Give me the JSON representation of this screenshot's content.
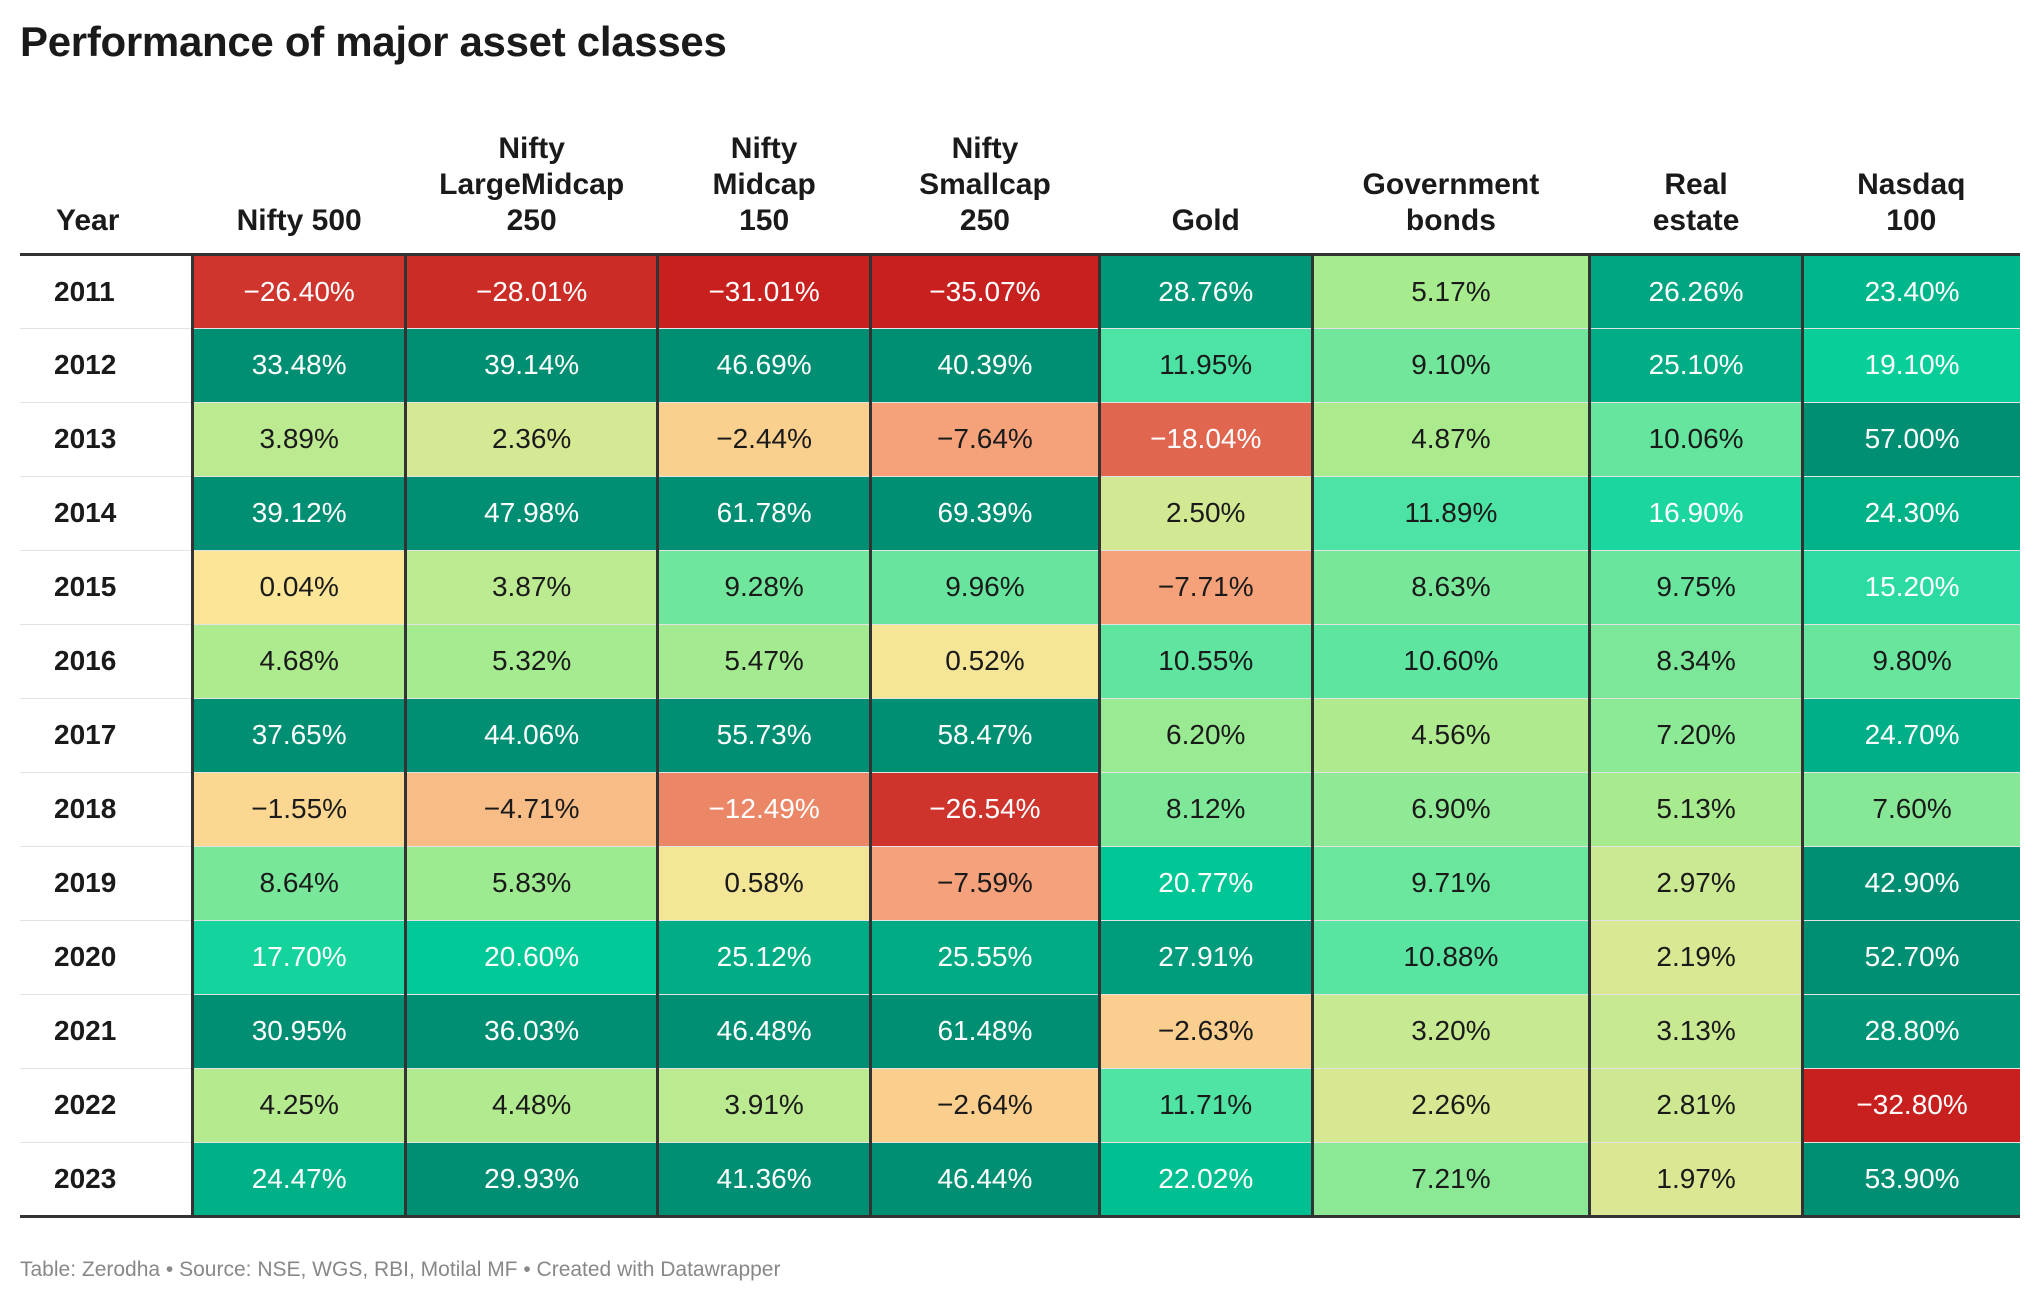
{
  "title": "Performance of major asset classes",
  "footer": "Table: Zerodha • Source: NSE, WGS, RBI, Motilal MF • Created with Datawrapper",
  "colors": {
    "deep_red": "#c8201e",
    "salmon": "#f5a37c",
    "pale_yellow": "#fde597",
    "light_green": "#a9eb8e",
    "mint": "#3ee2a8",
    "teal": "#008f73"
  },
  "chart_data": {
    "type": "table",
    "title": "Performance of major asset classes",
    "columns": [
      "Year",
      "Nifty 500",
      "Nifty LargeMidcap 250",
      "Nifty Midcap 150",
      "Nifty Smallcap 250",
      "Gold",
      "Government bonds",
      "Real estate",
      "Nasdaq 100"
    ],
    "rows": [
      {
        "year": "2011",
        "display": [
          "−26.40%",
          "−28.01%",
          "−31.01%",
          "−35.07%",
          "28.76%",
          "5.17%",
          "26.26%",
          "23.40%"
        ],
        "values": [
          -26.4,
          -28.01,
          -31.01,
          -35.07,
          28.76,
          5.17,
          26.26,
          23.4
        ]
      },
      {
        "year": "2012",
        "display": [
          "33.48%",
          "39.14%",
          "46.69%",
          "40.39%",
          "11.95%",
          "9.10%",
          "25.10%",
          "19.10%"
        ],
        "values": [
          33.48,
          39.14,
          46.69,
          40.39,
          11.95,
          9.1,
          25.1,
          19.1
        ]
      },
      {
        "year": "2013",
        "display": [
          "3.89%",
          "2.36%",
          "−2.44%",
          "−7.64%",
          "−18.04%",
          "4.87%",
          "10.06%",
          "57.00%"
        ],
        "values": [
          3.89,
          2.36,
          -2.44,
          -7.64,
          -18.04,
          4.87,
          10.06,
          57.0
        ]
      },
      {
        "year": "2014",
        "display": [
          "39.12%",
          "47.98%",
          "61.78%",
          "69.39%",
          "2.50%",
          "11.89%",
          "16.90%",
          "24.30%"
        ],
        "values": [
          39.12,
          47.98,
          61.78,
          69.39,
          2.5,
          11.89,
          16.9,
          24.3
        ]
      },
      {
        "year": "2015",
        "display": [
          "0.04%",
          "3.87%",
          "9.28%",
          "9.96%",
          "−7.71%",
          "8.63%",
          "9.75%",
          "15.20%"
        ],
        "values": [
          0.04,
          3.87,
          9.28,
          9.96,
          -7.71,
          8.63,
          9.75,
          15.2
        ]
      },
      {
        "year": "2016",
        "display": [
          "4.68%",
          "5.32%",
          "5.47%",
          "0.52%",
          "10.55%",
          "10.60%",
          "8.34%",
          "9.80%"
        ],
        "values": [
          4.68,
          5.32,
          5.47,
          0.52,
          10.55,
          10.6,
          8.34,
          9.8
        ]
      },
      {
        "year": "2017",
        "display": [
          "37.65%",
          "44.06%",
          "55.73%",
          "58.47%",
          "6.20%",
          "4.56%",
          "7.20%",
          "24.70%"
        ],
        "values": [
          37.65,
          44.06,
          55.73,
          58.47,
          6.2,
          4.56,
          7.2,
          24.7
        ]
      },
      {
        "year": "2018",
        "display": [
          "−1.55%",
          "−4.71%",
          "−12.49%",
          "−26.54%",
          "8.12%",
          "6.90%",
          "5.13%",
          "7.60%"
        ],
        "values": [
          -1.55,
          -4.71,
          -12.49,
          -26.54,
          8.12,
          6.9,
          5.13,
          7.6
        ]
      },
      {
        "year": "2019",
        "display": [
          "8.64%",
          "5.83%",
          "0.58%",
          "−7.59%",
          "20.77%",
          "9.71%",
          "2.97%",
          "42.90%"
        ],
        "values": [
          8.64,
          5.83,
          0.58,
          -7.59,
          20.77,
          9.71,
          2.97,
          42.9
        ]
      },
      {
        "year": "2020",
        "display": [
          "17.70%",
          "20.60%",
          "25.12%",
          "25.55%",
          "27.91%",
          "10.88%",
          "2.19%",
          "52.70%"
        ],
        "values": [
          17.7,
          20.6,
          25.12,
          25.55,
          27.91,
          10.88,
          2.19,
          52.7
        ]
      },
      {
        "year": "2021",
        "display": [
          "30.95%",
          "36.03%",
          "46.48%",
          "61.48%",
          "−2.63%",
          "3.20%",
          "3.13%",
          "28.80%"
        ],
        "values": [
          30.95,
          36.03,
          46.48,
          61.48,
          -2.63,
          3.2,
          3.13,
          28.8
        ]
      },
      {
        "year": "2022",
        "display": [
          "4.25%",
          "4.48%",
          "3.91%",
          "−2.64%",
          "11.71%",
          "2.26%",
          "2.81%",
          "−32.80%"
        ],
        "values": [
          4.25,
          4.48,
          3.91,
          -2.64,
          11.71,
          2.26,
          2.81,
          -32.8
        ]
      },
      {
        "year": "2023",
        "display": [
          "24.47%",
          "29.93%",
          "41.36%",
          "46.44%",
          "22.02%",
          "7.21%",
          "1.97%",
          "53.90%"
        ],
        "values": [
          24.47,
          29.93,
          41.36,
          46.44,
          22.02,
          7.21,
          1.97,
          53.9
        ]
      }
    ]
  }
}
